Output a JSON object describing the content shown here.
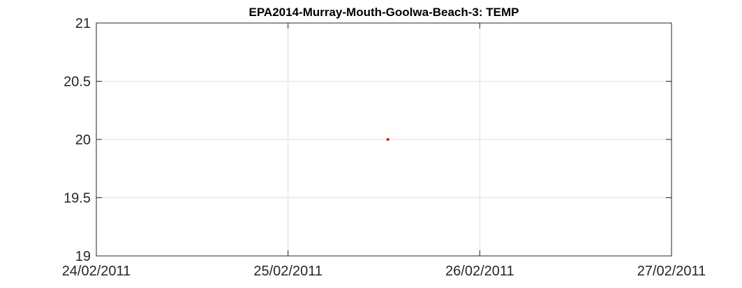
{
  "chart_data": {
    "type": "scatter",
    "title": "EPA2014-Murray-Mouth-Goolwa-Beach-3: TEMP",
    "xlabel": "",
    "ylabel": "",
    "x_ticks": [
      "24/02/2011",
      "25/02/2011",
      "26/02/2011",
      "27/02/2011"
    ],
    "xlim": [
      "2011-02-24",
      "2011-02-27"
    ],
    "y_ticks": [
      "19",
      "19.5",
      "20",
      "20.5",
      "21"
    ],
    "ylim": [
      19,
      21
    ],
    "grid": true,
    "legend": "none",
    "series": [
      {
        "color": "#ff0000",
        "points": [
          {
            "x": "2011-02-25T12:30",
            "y": 20
          }
        ]
      }
    ]
  }
}
